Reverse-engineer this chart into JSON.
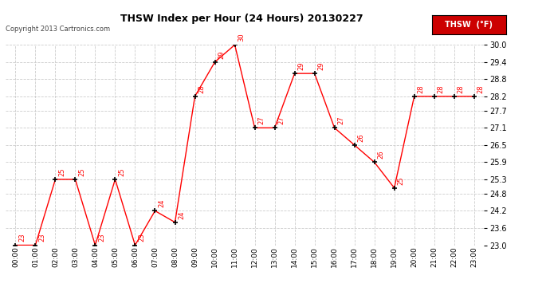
{
  "title": "THSW Index per Hour (24 Hours) 20130227",
  "copyright": "Copyright 2013 Cartronics.com",
  "legend_label": "THSW  (°F)",
  "hours": [
    "00:00",
    "01:00",
    "02:00",
    "03:00",
    "04:00",
    "05:00",
    "06:00",
    "07:00",
    "08:00",
    "09:00",
    "10:00",
    "11:00",
    "12:00",
    "13:00",
    "14:00",
    "15:00",
    "16:00",
    "17:00",
    "18:00",
    "19:00",
    "20:00",
    "21:00",
    "22:00",
    "23:00"
  ],
  "values": [
    23.0,
    23.0,
    25.3,
    25.3,
    23.0,
    25.3,
    23.0,
    24.2,
    23.8,
    28.2,
    29.4,
    30.0,
    27.1,
    27.1,
    29.0,
    29.0,
    27.1,
    26.5,
    25.9,
    25.0,
    28.2,
    28.2,
    28.2,
    28.2
  ],
  "point_labels": [
    "23",
    "23",
    "25",
    "25",
    "23",
    "25",
    "23",
    "24",
    "24",
    "28",
    "29",
    "30",
    "27",
    "27",
    "29",
    "29",
    "27",
    "26",
    "26",
    "25",
    "28",
    "28",
    "28",
    "28"
  ],
  "ylim_min": 23.0,
  "ylim_max": 30.0,
  "yticks": [
    23.0,
    23.6,
    24.2,
    24.8,
    25.3,
    25.9,
    26.5,
    27.1,
    27.7,
    28.2,
    28.8,
    29.4,
    30.0
  ],
  "line_color": "#ff0000",
  "marker_color": "#000000",
  "bg_color": "#ffffff",
  "grid_color": "#cccccc",
  "title_color": "#000000",
  "legend_bg": "#cc0000",
  "legend_text_color": "#ffffff",
  "copyright_color": "#444444"
}
